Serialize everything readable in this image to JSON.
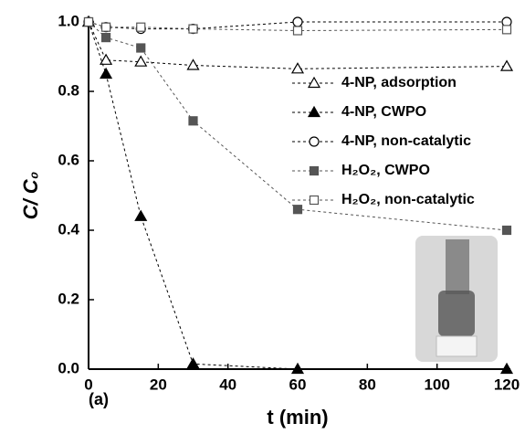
{
  "chart_data": {
    "type": "line",
    "xlabel": "t (min)",
    "ylabel": "C/ C₀",
    "annotation": "(a)",
    "x": [
      0,
      5,
      15,
      30,
      60,
      120
    ],
    "xlim": [
      0,
      120
    ],
    "xticks": [
      0,
      20,
      40,
      60,
      80,
      100,
      120
    ],
    "ylim": [
      0,
      1
    ],
    "yticks": [
      {
        "value": 0,
        "label": "0.0"
      },
      0.2,
      0.4,
      0.6,
      0.8,
      {
        "value": 1,
        "label": "1.0"
      }
    ],
    "series": [
      {
        "name": "4-NP, adsorption",
        "color": "#000000",
        "marker": "triangle",
        "filled": false,
        "values": [
          1.0,
          0.89,
          0.885,
          0.875,
          0.865,
          0.872
        ]
      },
      {
        "name": "4-NP, CWPO",
        "color": "#000000",
        "marker": "triangle",
        "filled": true,
        "values": [
          1.0,
          0.85,
          0.44,
          0.015,
          0.0,
          0.0
        ]
      },
      {
        "name": "4-NP, non-catalytic",
        "color": "#000000",
        "marker": "circle",
        "filled": false,
        "values": [
          1.0,
          0.985,
          0.98,
          0.98,
          1.0,
          1.0
        ]
      },
      {
        "name": "H₂O₂, CWPO",
        "color": "#555555",
        "marker": "square",
        "filled": true,
        "values": [
          1.0,
          0.955,
          0.925,
          0.715,
          0.46,
          0.4
        ]
      },
      {
        "name": "H₂O₂, non-catalytic",
        "color": "#555555",
        "marker": "square",
        "filled": false,
        "values": [
          1.0,
          0.985,
          0.985,
          0.98,
          0.975,
          0.978
        ]
      }
    ]
  }
}
